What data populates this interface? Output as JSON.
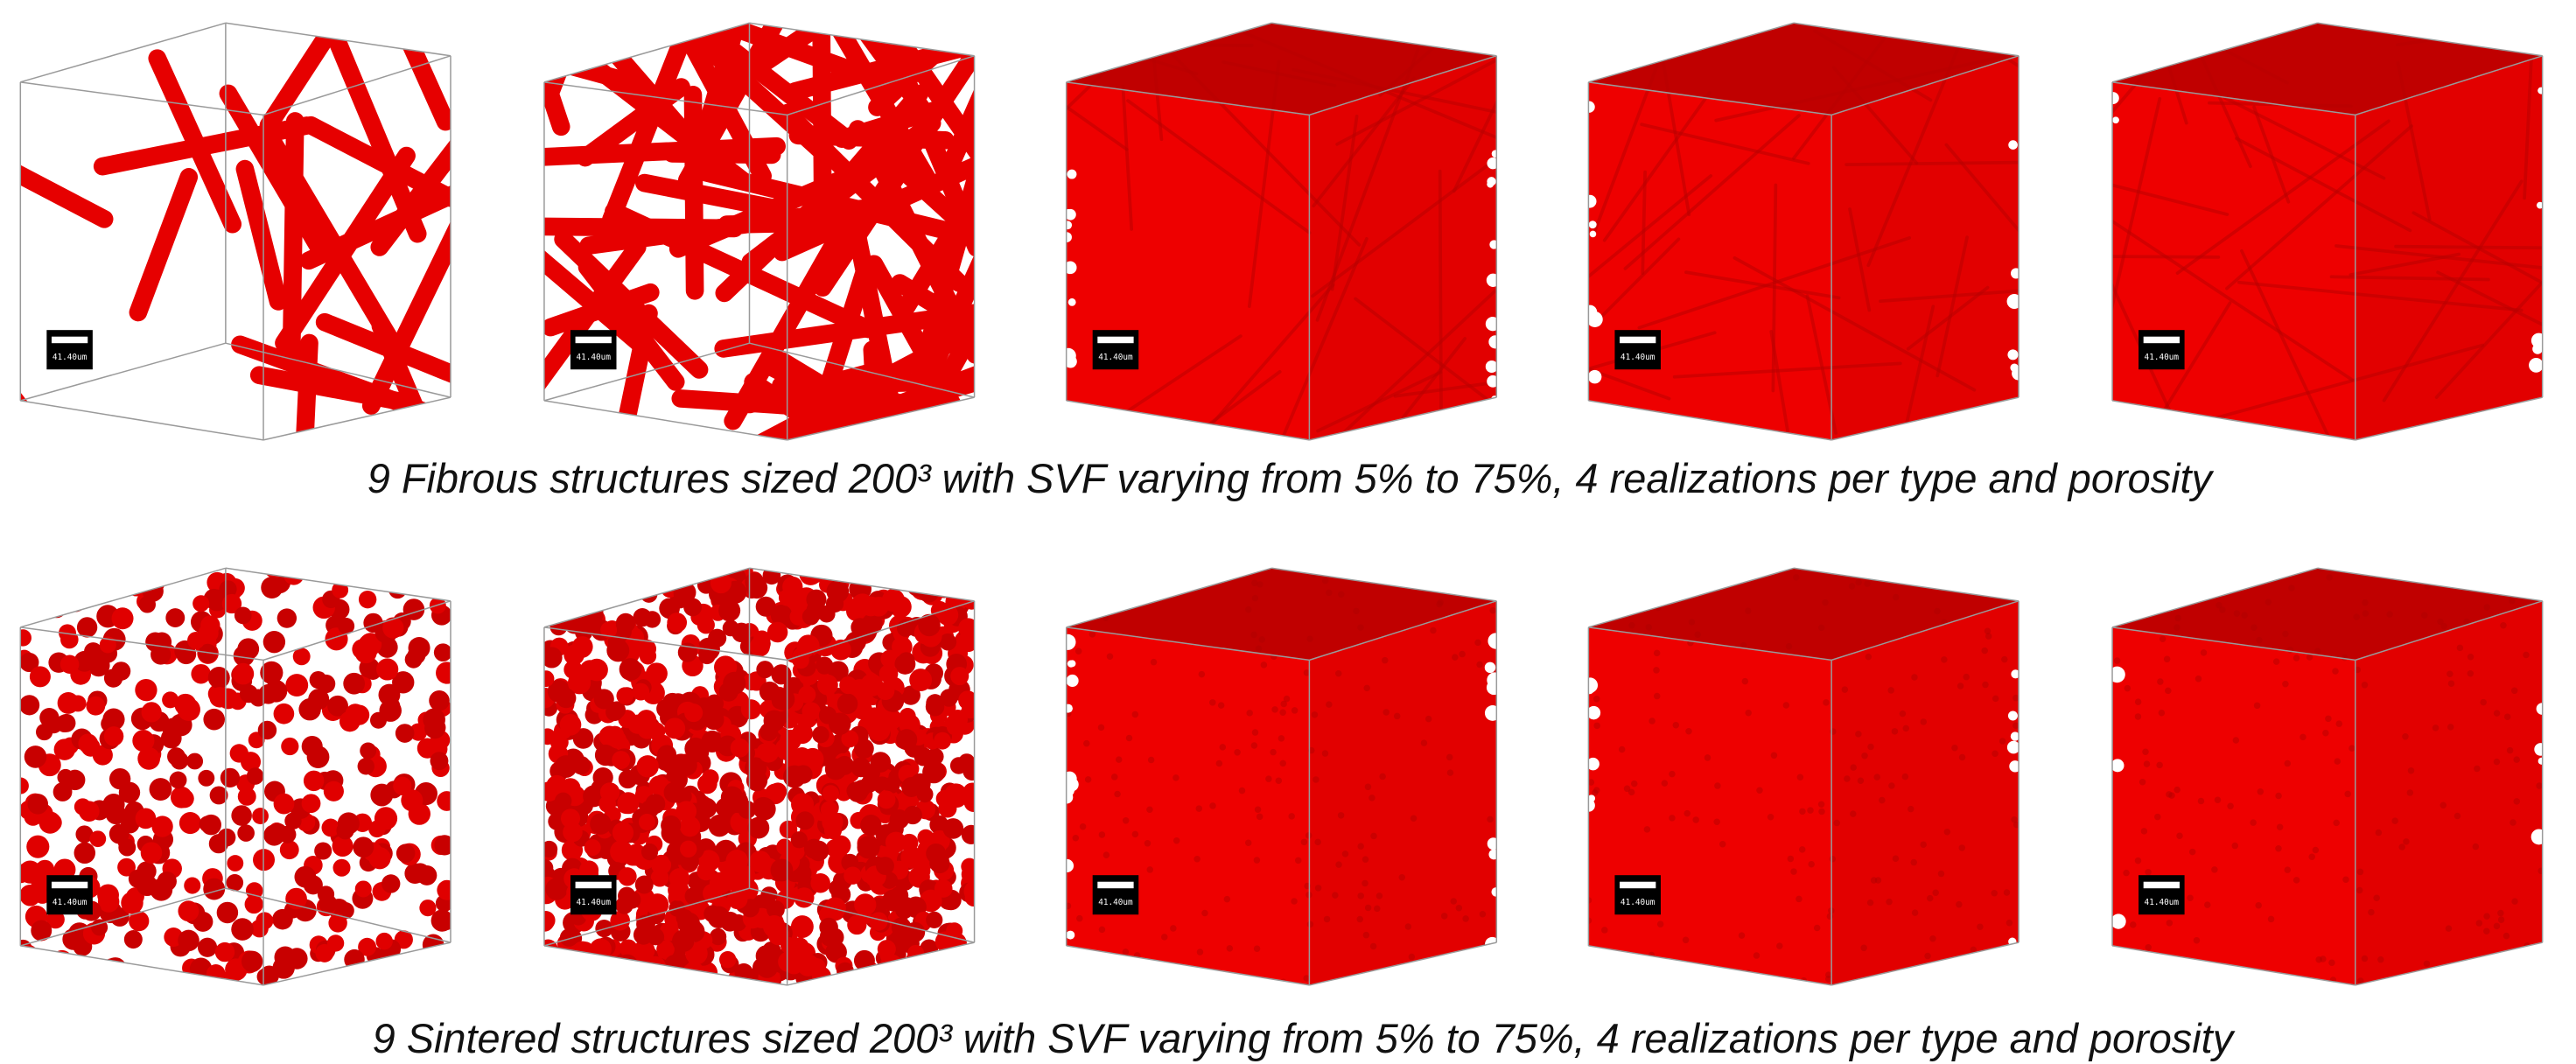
{
  "rows": [
    {
      "kind": "fibrous",
      "caption": "9 Fibrous structures sized 200³ with SVF varying from 5% to 75%, 4 realizations per type and porosity",
      "scale_labels": [
        "41.40um",
        "41.40um",
        "41.40um",
        "41.40um",
        "41.40um"
      ]
    },
    {
      "kind": "sintered",
      "caption": "9 Sintered structures sized 200³ with SVF varying from 5% to 75%, 4 realizations per type and porosity",
      "scale_labels": [
        "41.40um",
        "41.40um",
        "41.40um",
        "41.40um",
        "41.40um"
      ]
    }
  ]
}
